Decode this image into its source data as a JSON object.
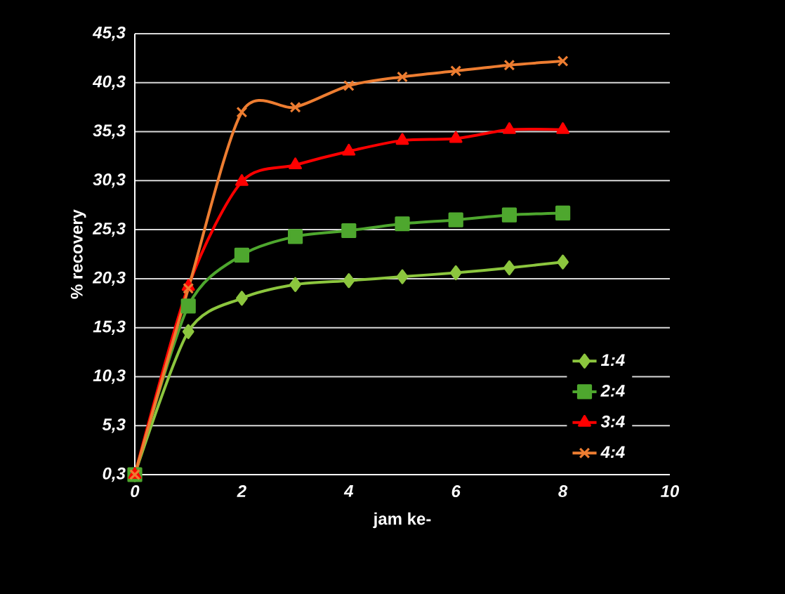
{
  "chart_data": {
    "type": "line",
    "xlabel": "jam ke-",
    "ylabel": "% recovery",
    "x": [
      0,
      1,
      2,
      3,
      4,
      5,
      6,
      7,
      8
    ],
    "series": [
      {
        "name": "1:4",
        "color": "#8cc63e",
        "marker": "diamond",
        "values": [
          0.3,
          14.9,
          18.3,
          19.7,
          20.1,
          20.5,
          20.9,
          21.4,
          22.0
        ]
      },
      {
        "name": "2:4",
        "color": "#4ea72e",
        "marker": "square",
        "values": [
          0.3,
          17.5,
          22.7,
          24.6,
          25.2,
          25.9,
          26.3,
          26.8,
          27.0
        ]
      },
      {
        "name": "3:4",
        "color": "#ff0000",
        "marker": "triangle",
        "values": [
          0.3,
          19.5,
          30.2,
          31.9,
          33.3,
          34.4,
          34.6,
          35.5,
          35.5
        ]
      },
      {
        "name": "4:4",
        "color": "#ed7d31",
        "marker": "cross",
        "values": [
          0.3,
          19.3,
          37.3,
          37.8,
          40.0,
          40.9,
          41.5,
          42.1,
          42.5
        ]
      }
    ],
    "xlim": [
      0,
      10
    ],
    "xticks": [
      0,
      2,
      4,
      6,
      8,
      10
    ],
    "ylim": [
      0.3,
      45.3
    ],
    "yticks": [
      {
        "value": 0.3,
        "label": "0,3"
      },
      {
        "value": 5.3,
        "label": "5,3"
      },
      {
        "value": 10.3,
        "label": "10,3"
      },
      {
        "value": 15.3,
        "label": "15,3"
      },
      {
        "value": 20.3,
        "label": "20,3"
      },
      {
        "value": 25.3,
        "label": "25,3"
      },
      {
        "value": 30.3,
        "label": "30,3"
      },
      {
        "value": 35.3,
        "label": "35,3"
      },
      {
        "value": 40.3,
        "label": "40,3"
      },
      {
        "value": 45.3,
        "label": "45,3"
      }
    ],
    "grid": "y",
    "legend": "bottom right",
    "line_style": "solid"
  }
}
